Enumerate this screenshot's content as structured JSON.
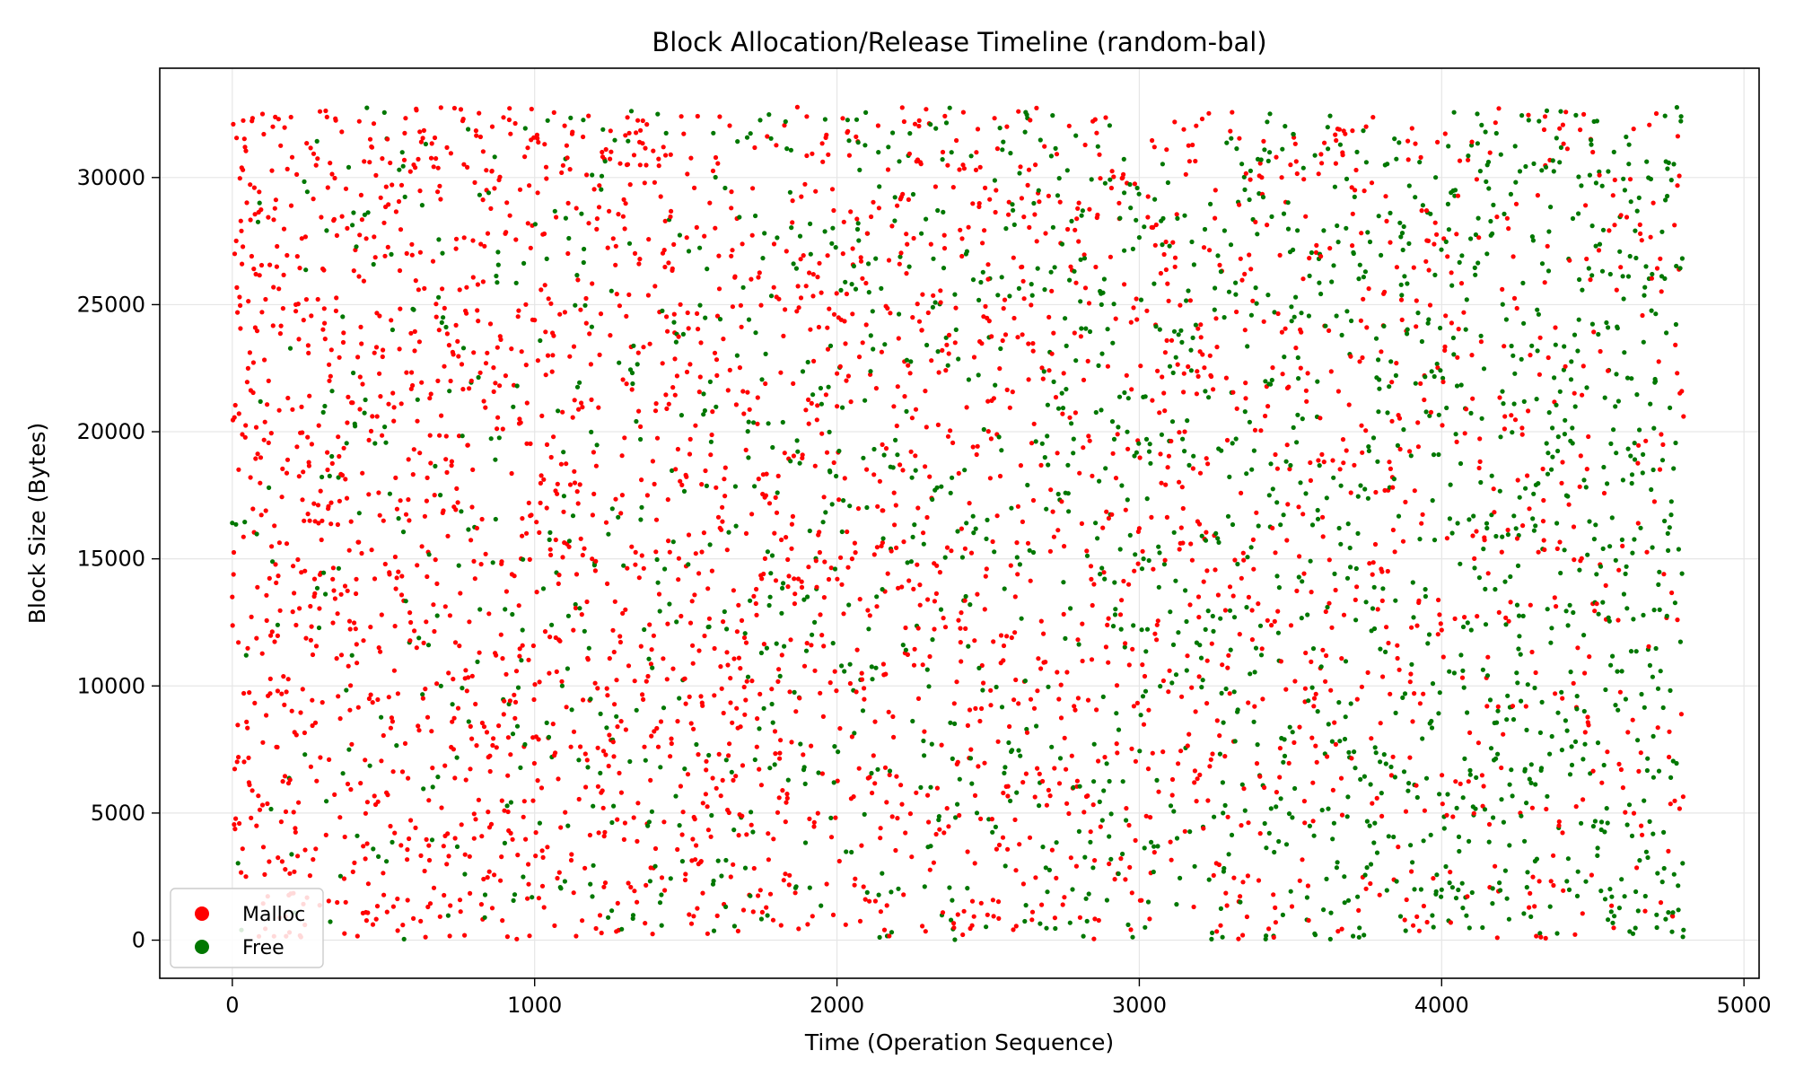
{
  "chart_data": {
    "type": "scatter",
    "title": "Block Allocation/Release Timeline (random-bal)",
    "xlabel": "Time (Operation Sequence)",
    "ylabel": "Block Size (Bytes)",
    "xlim": [
      -240,
      5050
    ],
    "ylim": [
      -1500,
      34300
    ],
    "x_ticks": [
      0,
      1000,
      2000,
      3000,
      4000,
      5000
    ],
    "y_ticks": [
      0,
      5000,
      10000,
      15000,
      20000,
      25000,
      30000
    ],
    "x_tick_labels": [
      "0",
      "1000",
      "2000",
      "3000",
      "4000",
      "5000"
    ],
    "y_tick_labels": [
      "0",
      "5000",
      "10000",
      "15000",
      "20000",
      "25000",
      "30000"
    ],
    "grid": true,
    "legend_position": "bottom-left",
    "operation_count": 4800,
    "size_range": [
      16,
      32768
    ],
    "series": [
      {
        "name": "Malloc",
        "color": "#ff0000",
        "points": [
          [
            0,
            13500
          ],
          [
            8,
            27000
          ],
          [
            20,
            7200
          ],
          [
            35,
            30300
          ],
          [
            45,
            2500
          ],
          [
            60,
            18200
          ],
          [
            80,
            4500
          ],
          [
            100,
            32500
          ],
          [
            120,
            22000
          ],
          [
            150,
            9800
          ],
          [
            180,
            15600
          ],
          [
            210,
            25000
          ],
          [
            240,
            600
          ],
          [
            260,
            11800
          ],
          [
            290,
            32600
          ],
          [
            320,
            7100
          ],
          [
            350,
            19800
          ],
          [
            380,
            28000
          ],
          [
            410,
            14200
          ],
          [
            440,
            3200
          ],
          [
            470,
            23100
          ],
          [
            500,
            16500
          ],
          [
            530,
            8600
          ],
          [
            560,
            29700
          ],
          [
            590,
            12500
          ],
          [
            620,
            31800
          ],
          [
            650,
            5500
          ],
          [
            680,
            22000
          ],
          [
            710,
            18400
          ],
          [
            740,
            27200
          ],
          [
            770,
            10300
          ],
          [
            800,
            4000
          ],
          [
            830,
            25900
          ],
          [
            860,
            32000
          ],
          [
            890,
            14800
          ],
          [
            920,
            7300
          ],
          [
            950,
            20500
          ],
          [
            980,
            2200
          ],
          [
            1010,
            29400
          ],
          [
            1040,
            17000
          ],
          [
            1070,
            11900
          ],
          [
            1100,
            24700
          ],
          [
            1130,
            8200
          ],
          [
            1160,
            31600
          ],
          [
            1190,
            15000
          ],
          [
            1220,
            5800
          ],
          [
            1260,
            27600
          ],
          [
            1300,
            13000
          ],
          [
            1350,
            20200
          ],
          [
            1400,
            3600
          ],
          [
            1450,
            30900
          ],
          [
            1500,
            9300
          ],
          [
            1550,
            23500
          ],
          [
            1600,
            17800
          ],
          [
            1650,
            28800
          ],
          [
            1700,
            11700
          ],
          [
            1750,
            6100
          ],
          [
            1800,
            25300
          ],
          [
            1850,
            15400
          ],
          [
            1900,
            32400
          ],
          [
            1950,
            12000
          ],
          [
            2000,
            21000
          ],
          [
            2050,
            8000
          ],
          [
            2100,
            27800
          ],
          [
            2150,
            16900
          ],
          [
            2200,
            4800
          ],
          [
            2250,
            24500
          ],
          [
            2300,
            13400
          ],
          [
            2350,
            31000
          ],
          [
            2400,
            7000
          ],
          [
            2450,
            19400
          ],
          [
            2500,
            26000
          ],
          [
            2550,
            11000
          ],
          [
            2600,
            32600
          ],
          [
            2650,
            17300
          ],
          [
            2700,
            5900
          ],
          [
            2750,
            22300
          ],
          [
            2800,
            29000
          ],
          [
            2850,
            14000
          ],
          [
            2900,
            3000
          ],
          [
            2950,
            25800
          ],
          [
            3000,
            16200
          ],
          [
            3050,
            31200
          ],
          [
            3100,
            10600
          ],
          [
            3150,
            20000
          ],
          [
            3200,
            6500
          ],
          [
            3250,
            28400
          ],
          [
            3300,
            13900
          ],
          [
            3350,
            24000
          ],
          [
            3400,
            4200
          ],
          [
            3450,
            19100
          ],
          [
            3500,
            30500
          ],
          [
            3550,
            11300
          ],
          [
            3600,
            26900
          ],
          [
            3650,
            7700
          ],
          [
            3700,
            17600
          ],
          [
            3750,
            32000
          ],
          [
            3800,
            14600
          ],
          [
            3850,
            22700
          ],
          [
            3900,
            2700
          ],
          [
            3950,
            28700
          ],
          [
            4000,
            12200
          ],
          [
            4050,
            19600
          ],
          [
            4100,
            31400
          ],
          [
            4150,
            9200
          ],
          [
            4200,
            25600
          ],
          [
            4250,
            15800
          ],
          [
            4300,
            5200
          ],
          [
            4350,
            27300
          ],
          [
            4400,
            18800
          ],
          [
            4450,
            11500
          ],
          [
            4500,
            31000
          ],
          [
            4550,
            22400
          ],
          [
            4600,
            6000
          ],
          [
            4650,
            16400
          ],
          [
            4700,
            29000
          ],
          [
            4750,
            3500
          ],
          [
            4780,
            12600
          ],
          [
            4800,
            20600
          ]
        ]
      },
      {
        "name": "Free",
        "color": "#007700",
        "points": [
          [
            30,
            400
          ],
          [
            90,
            29000
          ],
          [
            150,
            12400
          ],
          [
            240,
            7300
          ],
          [
            330,
            21600
          ],
          [
            420,
            16800
          ],
          [
            510,
            3100
          ],
          [
            600,
            24800
          ],
          [
            690,
            10000
          ],
          [
            780,
            31900
          ],
          [
            870,
            18900
          ],
          [
            960,
            12200
          ],
          [
            1040,
            26800
          ],
          [
            1110,
            4500
          ],
          [
            1190,
            30100
          ],
          [
            1270,
            8800
          ],
          [
            1350,
            19700
          ],
          [
            1430,
            14600
          ],
          [
            1510,
            27100
          ],
          [
            1590,
            2200
          ],
          [
            1670,
            23000
          ],
          [
            1750,
            11300
          ],
          [
            1830,
            32200
          ],
          [
            1910,
            16100
          ],
          [
            1990,
            6200
          ],
          [
            2070,
            28200
          ],
          [
            2150,
            13800
          ],
          [
            2230,
            20800
          ],
          [
            2310,
            3700
          ],
          [
            2390,
            25400
          ],
          [
            2470,
            10700
          ],
          [
            2550,
            31400
          ],
          [
            2630,
            17900
          ],
          [
            2710,
            7600
          ],
          [
            2790,
            22800
          ],
          [
            2870,
            14400
          ],
          [
            2950,
            29400
          ],
          [
            3030,
            1500
          ],
          [
            3110,
            20400
          ],
          [
            3190,
            11700
          ],
          [
            3270,
            26300
          ],
          [
            3350,
            5100
          ],
          [
            3430,
            17500
          ],
          [
            3510,
            31700
          ],
          [
            3590,
            9000
          ],
          [
            3670,
            23800
          ],
          [
            3750,
            13300
          ],
          [
            3830,
            28600
          ],
          [
            3910,
            2000
          ],
          [
            3990,
            19100
          ],
          [
            4070,
            10600
          ],
          [
            4150,
            27000
          ],
          [
            4230,
            6700
          ],
          [
            4310,
            16300
          ],
          [
            4390,
            30600
          ],
          [
            4470,
            12000
          ],
          [
            4550,
            24100
          ],
          [
            4630,
            4100
          ],
          [
            4700,
            18500
          ],
          [
            4760,
            29900
          ],
          [
            4800,
            400
          ]
        ]
      }
    ]
  }
}
